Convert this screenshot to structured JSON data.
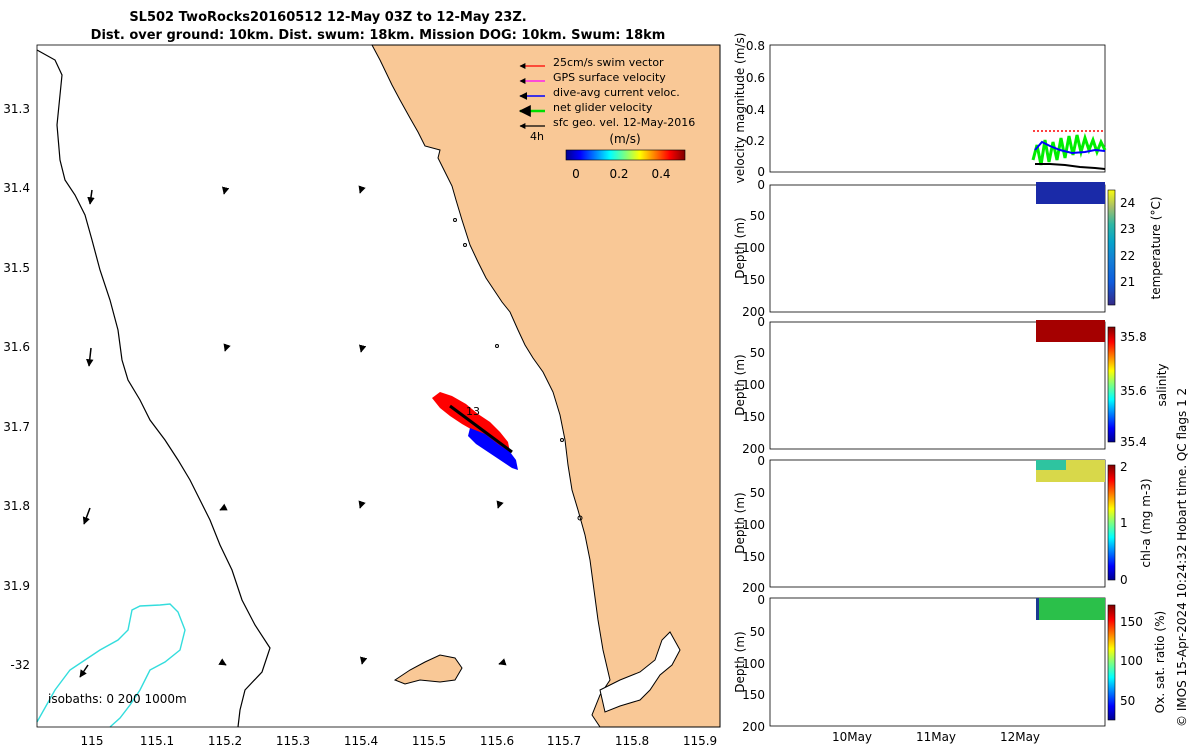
{
  "title_line1": "SL502 TwoRocks20160512 12-May 03Z to 12-May 23Z.",
  "title_line2": "Dist. over ground: 10km. Dist. swum: 18km. Mission DOG: 10km. Swum: 18km",
  "map": {
    "x_ticks": [
      "115",
      "115.1",
      "115.2",
      "115.3",
      "115.4",
      "115.5",
      "115.6",
      "115.7",
      "115.8",
      "115.9"
    ],
    "y_ticks": [
      "31.3",
      "31.4",
      "31.5",
      "31.6",
      "31.7",
      "31.8",
      "31.9",
      "-32"
    ],
    "legend": [
      {
        "label": "25cm/s swim vector",
        "color": "#ff0000"
      },
      {
        "label": "GPS surface velocity",
        "color": "#ff00ff"
      },
      {
        "label": "dive-avg current veloc.",
        "color": "#0000ff"
      },
      {
        "label": "net glider velocity",
        "color": "#00dd00"
      },
      {
        "label": "sfc geo. vel. 12-May-2016",
        "color": "#000000"
      }
    ],
    "scale_label": "4h",
    "colorbar_unit": "(m/s)",
    "colorbar_ticks": [
      "0",
      "0.2",
      "0.4"
    ],
    "track_label": "13",
    "isobaths_label": "isobaths: 0    200  1000m",
    "land_color": "#f9c896",
    "isobath_color": "#33dddd"
  },
  "velocity_panel": {
    "ylabel": "velocity magnitude (m/s)",
    "y_ticks": [
      "0",
      "0.2",
      "0.4",
      "0.6",
      "0.8"
    ]
  },
  "profile_panels": [
    {
      "id": "temperature",
      "ylabel": "Depth (m)",
      "cbar_label": "temperature (°C)",
      "cbar_ticks": [
        "21",
        "22",
        "23",
        "24"
      ],
      "y_ticks": [
        "0",
        "50",
        "100",
        "150",
        "200"
      ]
    },
    {
      "id": "salinity",
      "ylabel": "Depth (m)",
      "cbar_label": "salinity",
      "cbar_ticks": [
        "35.4",
        "35.6",
        "35.8"
      ],
      "y_ticks": [
        "0",
        "50",
        "100",
        "150",
        "200"
      ]
    },
    {
      "id": "chla",
      "ylabel": "Depth (m)",
      "cbar_label": "chl-a (mg m-3)",
      "cbar_ticks": [
        "0",
        "1",
        "2"
      ],
      "y_ticks": [
        "0",
        "50",
        "100",
        "150",
        "200"
      ]
    },
    {
      "id": "oxygen",
      "ylabel": "Depth (m)",
      "cbar_label": "Ox. sat. ratio (%)",
      "cbar_ticks": [
        "50",
        "100",
        "150"
      ],
      "y_ticks": [
        "0",
        "50",
        "100",
        "150",
        "200"
      ]
    }
  ],
  "time_ticks": [
    "10May",
    "11May",
    "12May"
  ],
  "footer": "© IMOS 15-Apr-2024 10:24:32 Hobart time. QC flags 1  2",
  "chart_data": [
    {
      "type": "scatter",
      "title": "SL502 TwoRocks20160512 12-May 03Z to 12-May 23Z.",
      "xlim": [
        114.92,
        115.92
      ],
      "ylim": [
        -32.07,
        -31.22
      ],
      "glider_track_start": [
        115.51,
        -31.66
      ],
      "glider_track_end": [
        115.63,
        -31.75
      ],
      "grid": false
    },
    {
      "type": "line",
      "ylabel": "velocity magnitude (m/s)",
      "ylim": [
        0,
        0.8
      ],
      "x_categories": [
        "10May",
        "11May",
        "12May"
      ],
      "series": []
    }
  ]
}
